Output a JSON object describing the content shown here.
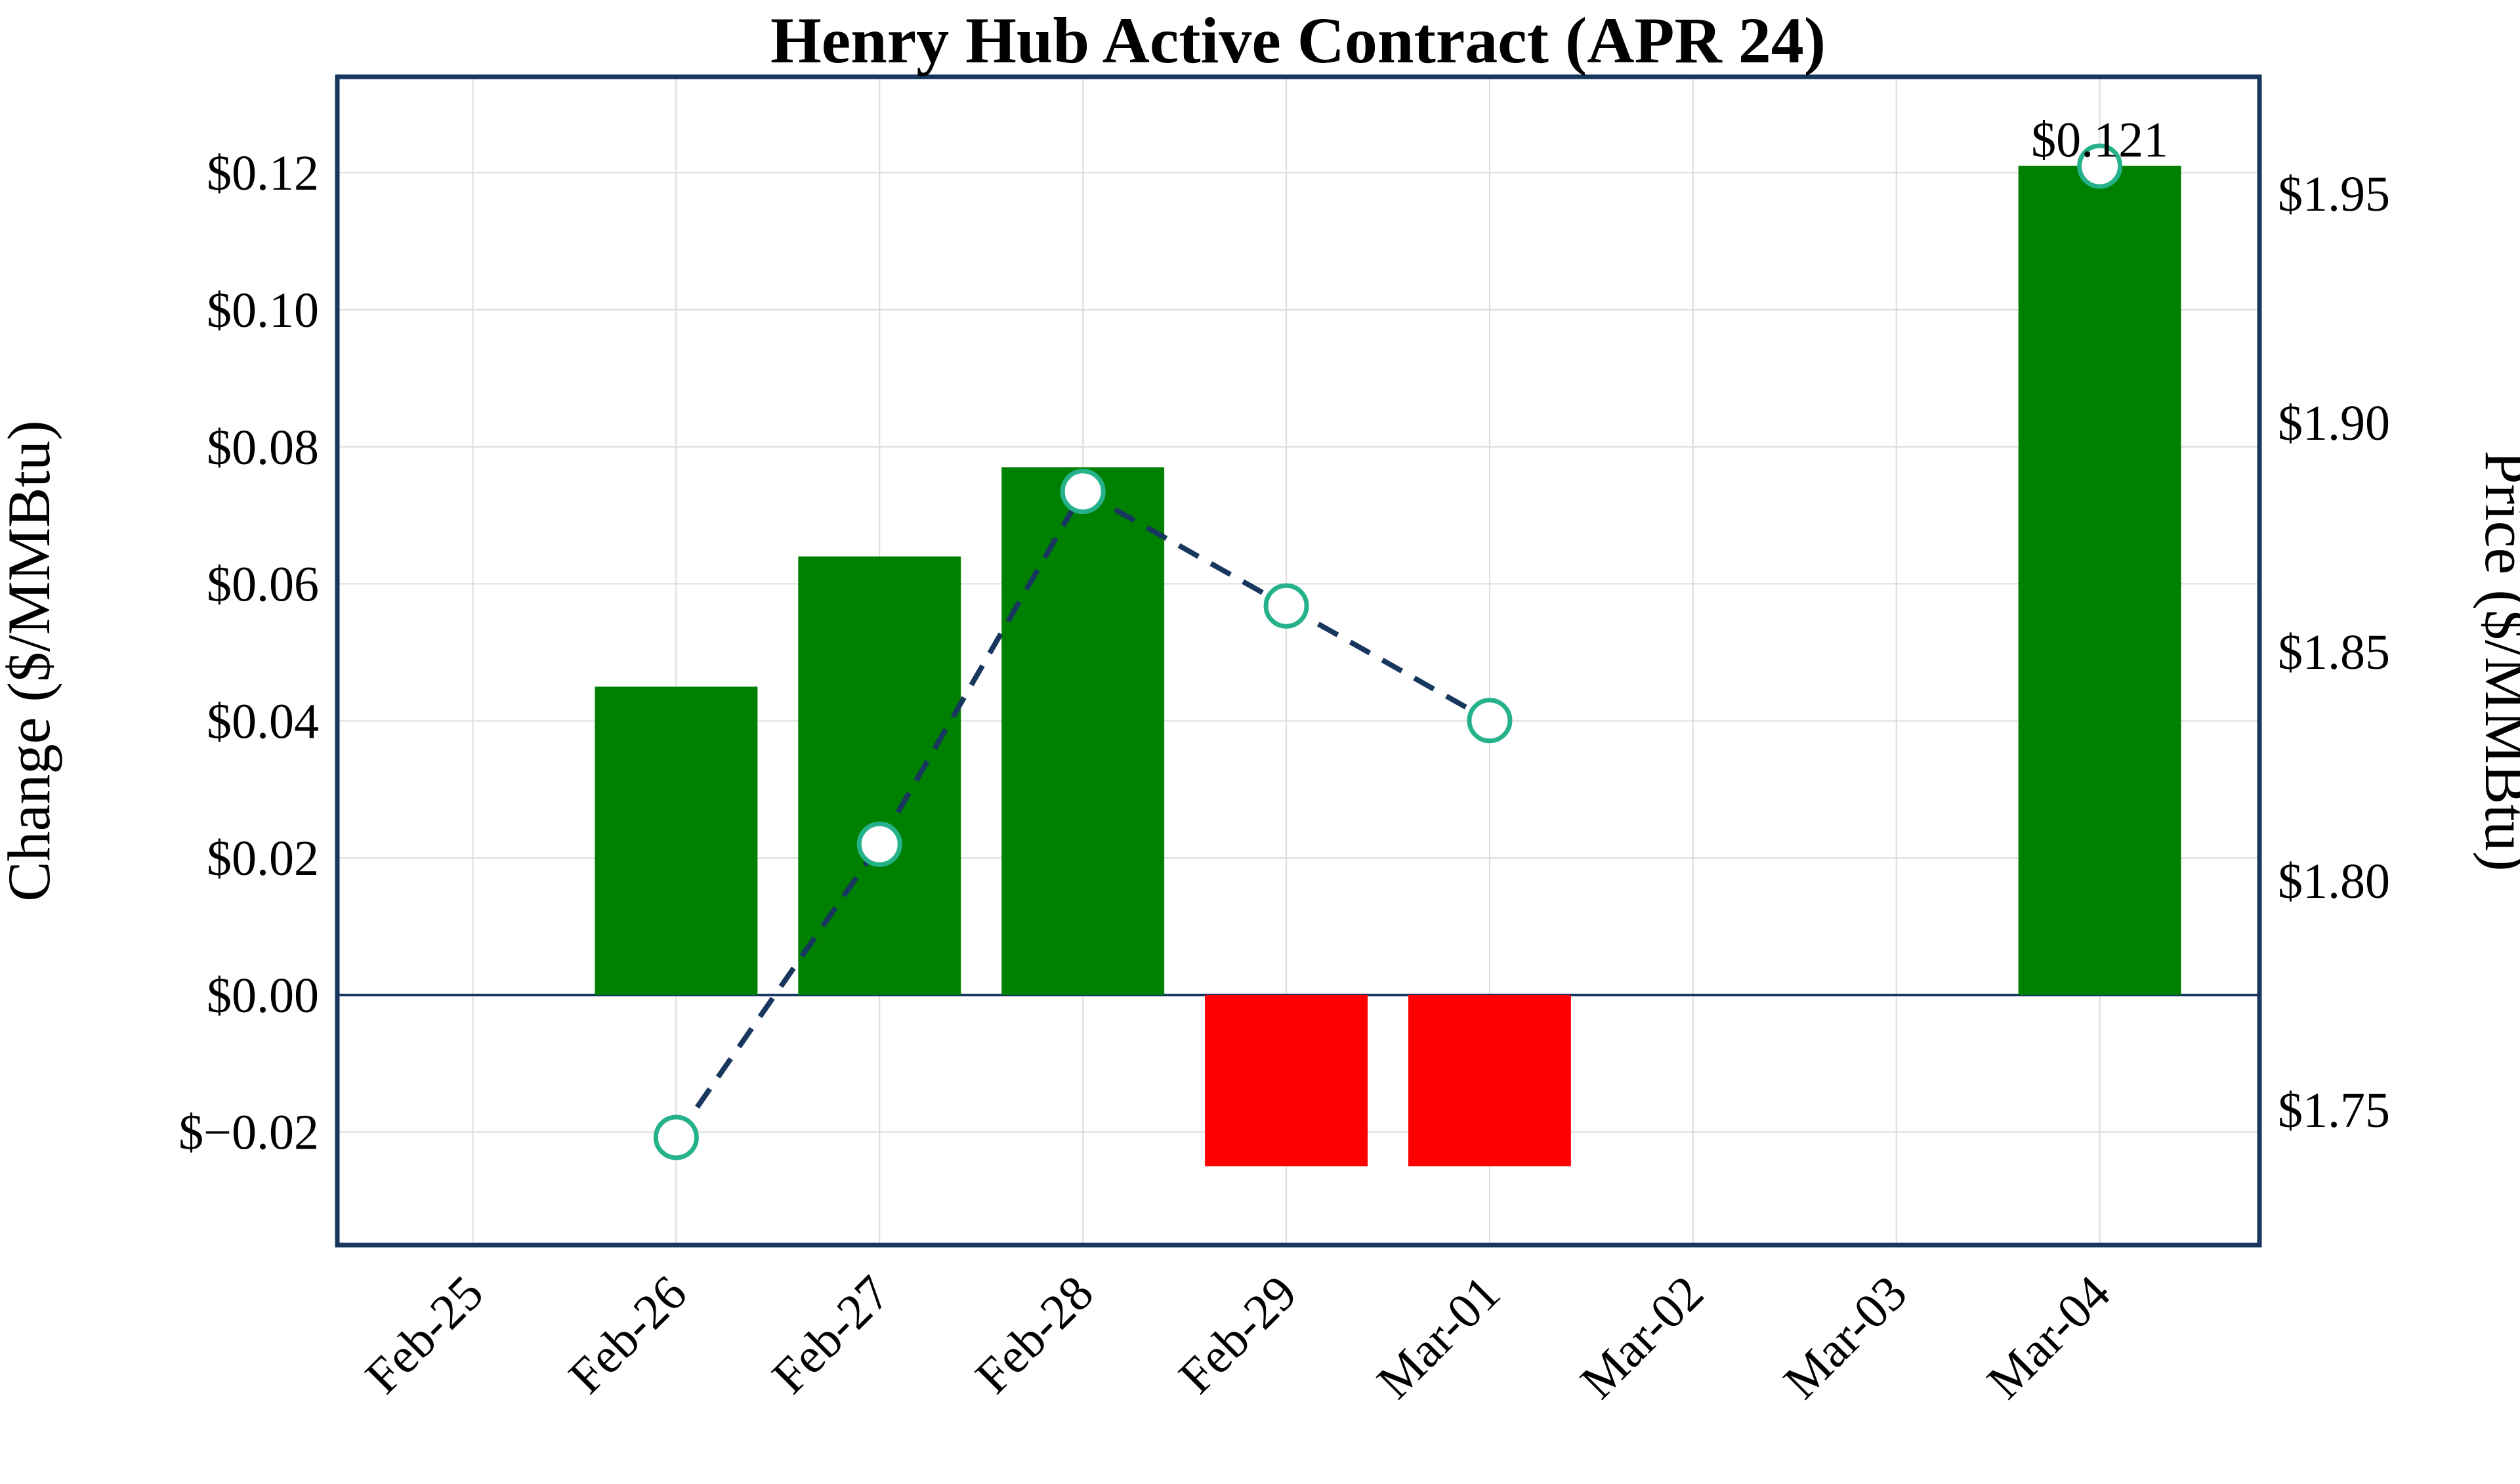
{
  "chart_data": {
    "type": "bar+line",
    "title": "Henry Hub Active Contract (APR 24)",
    "categories": [
      "Feb-25",
      "Feb-26",
      "Feb-27",
      "Feb-28",
      "Feb-29",
      "Mar-01",
      "Mar-02",
      "Mar-03",
      "Mar-04"
    ],
    "series": [
      {
        "name": "Change",
        "type": "bar",
        "axis": "left",
        "values": [
          null,
          0.045,
          0.064,
          0.077,
          -0.025,
          -0.025,
          null,
          null,
          0.121
        ],
        "positive_color": "#008000",
        "negative_color": "#ff0000"
      },
      {
        "name": "Price",
        "type": "line",
        "axis": "right",
        "values": [
          null,
          1.744,
          1.808,
          1.885,
          1.86,
          1.835,
          null,
          null,
          1.956
        ],
        "line_style": "dashed",
        "line_color": "#17375e",
        "marker": "circle",
        "marker_face_color": "#ffffff",
        "marker_edge_color": "#25b28a"
      }
    ],
    "left_ylabel": "Change ($/MMBtu)",
    "right_ylabel": "Price ($/MMBtu)",
    "left_ticks": [
      0.12,
      0.1,
      0.08,
      0.06,
      0.04,
      0.02,
      0.0,
      -0.02
    ],
    "left_tick_labels": [
      "$0.12",
      "$0.10",
      "$0.08",
      "$0.06",
      "$0.04",
      "$0.02",
      "$0.00",
      "$−0.02"
    ],
    "right_ticks": [
      1.95,
      1.9,
      1.85,
      1.8,
      1.75
    ],
    "right_tick_labels": [
      "$1.95",
      "$1.90",
      "$1.85",
      "$1.80",
      "$1.75"
    ],
    "left_ylim": [
      -0.0365,
      0.134
    ],
    "right_ylim": [
      1.7205,
      1.9755
    ],
    "annotation": {
      "text": "$0.121",
      "category": "Mar-04"
    },
    "grid": true,
    "zero_line": true,
    "x_tick_rotation": 45,
    "legend": "none",
    "colors": {
      "grid": "#dcdcdc",
      "frame": "#17375e",
      "background": "#ffffff"
    }
  }
}
